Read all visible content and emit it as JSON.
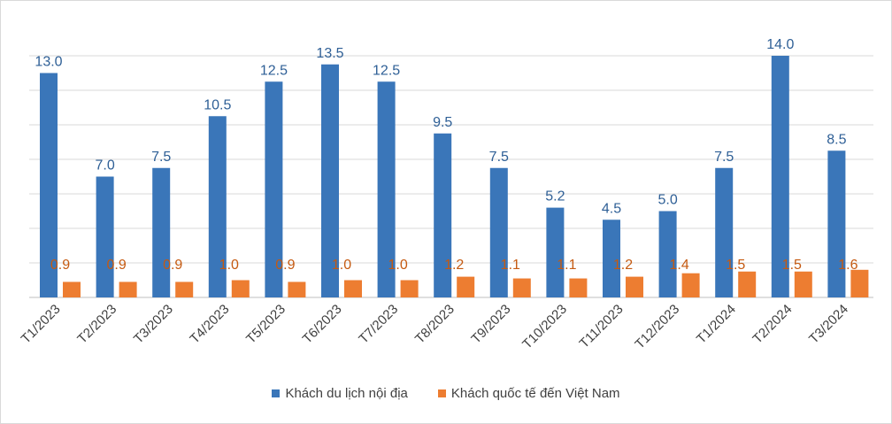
{
  "chart_data": {
    "type": "bar",
    "categories": [
      "T1/2023",
      "T2/2023",
      "T3/2023",
      "T4/2023",
      "T5/2023",
      "T6/2023",
      "T7/2023",
      "T8/2023",
      "T9/2023",
      "T10/2023",
      "T11/2023",
      "T12/2023",
      "T1/2024",
      "T2/2024",
      "T3/2024"
    ],
    "series": [
      {
        "name": "Khách du lịch nội địa",
        "color": "#3a76b9",
        "values": [
          13.0,
          7.0,
          7.5,
          10.5,
          12.5,
          13.5,
          12.5,
          9.5,
          7.5,
          5.2,
          4.5,
          5.0,
          7.5,
          14.0,
          8.5
        ],
        "labels": [
          "13.0",
          "7.0",
          "7.5",
          "10.5",
          "12.5",
          "13.5",
          "12.5",
          "9.5",
          "7.5",
          "5.2",
          "4.5",
          "5.0",
          "7.5",
          "14.0",
          "8.5"
        ],
        "label_color": "#2e5f96"
      },
      {
        "name": "Khách quốc tế đến Việt Nam",
        "color": "#ed7d31",
        "values": [
          0.9,
          0.9,
          0.9,
          1.0,
          0.9,
          1.0,
          1.0,
          1.2,
          1.1,
          1.1,
          1.2,
          1.4,
          1.5,
          1.5,
          1.6
        ],
        "labels": [
          "0.9",
          "0.9",
          "0.9",
          "1.0",
          "0.9",
          "1.0",
          "1.0",
          "1.2",
          "1.1",
          "1.1",
          "1.2",
          "1.4",
          "1.5",
          "1.5",
          "1.6"
        ],
        "label_color": "#c55a11"
      }
    ],
    "ylim": [
      0,
      14.5
    ],
    "grid": true,
    "legend_position": "bottom",
    "title": "",
    "xlabel": "",
    "ylabel": ""
  }
}
